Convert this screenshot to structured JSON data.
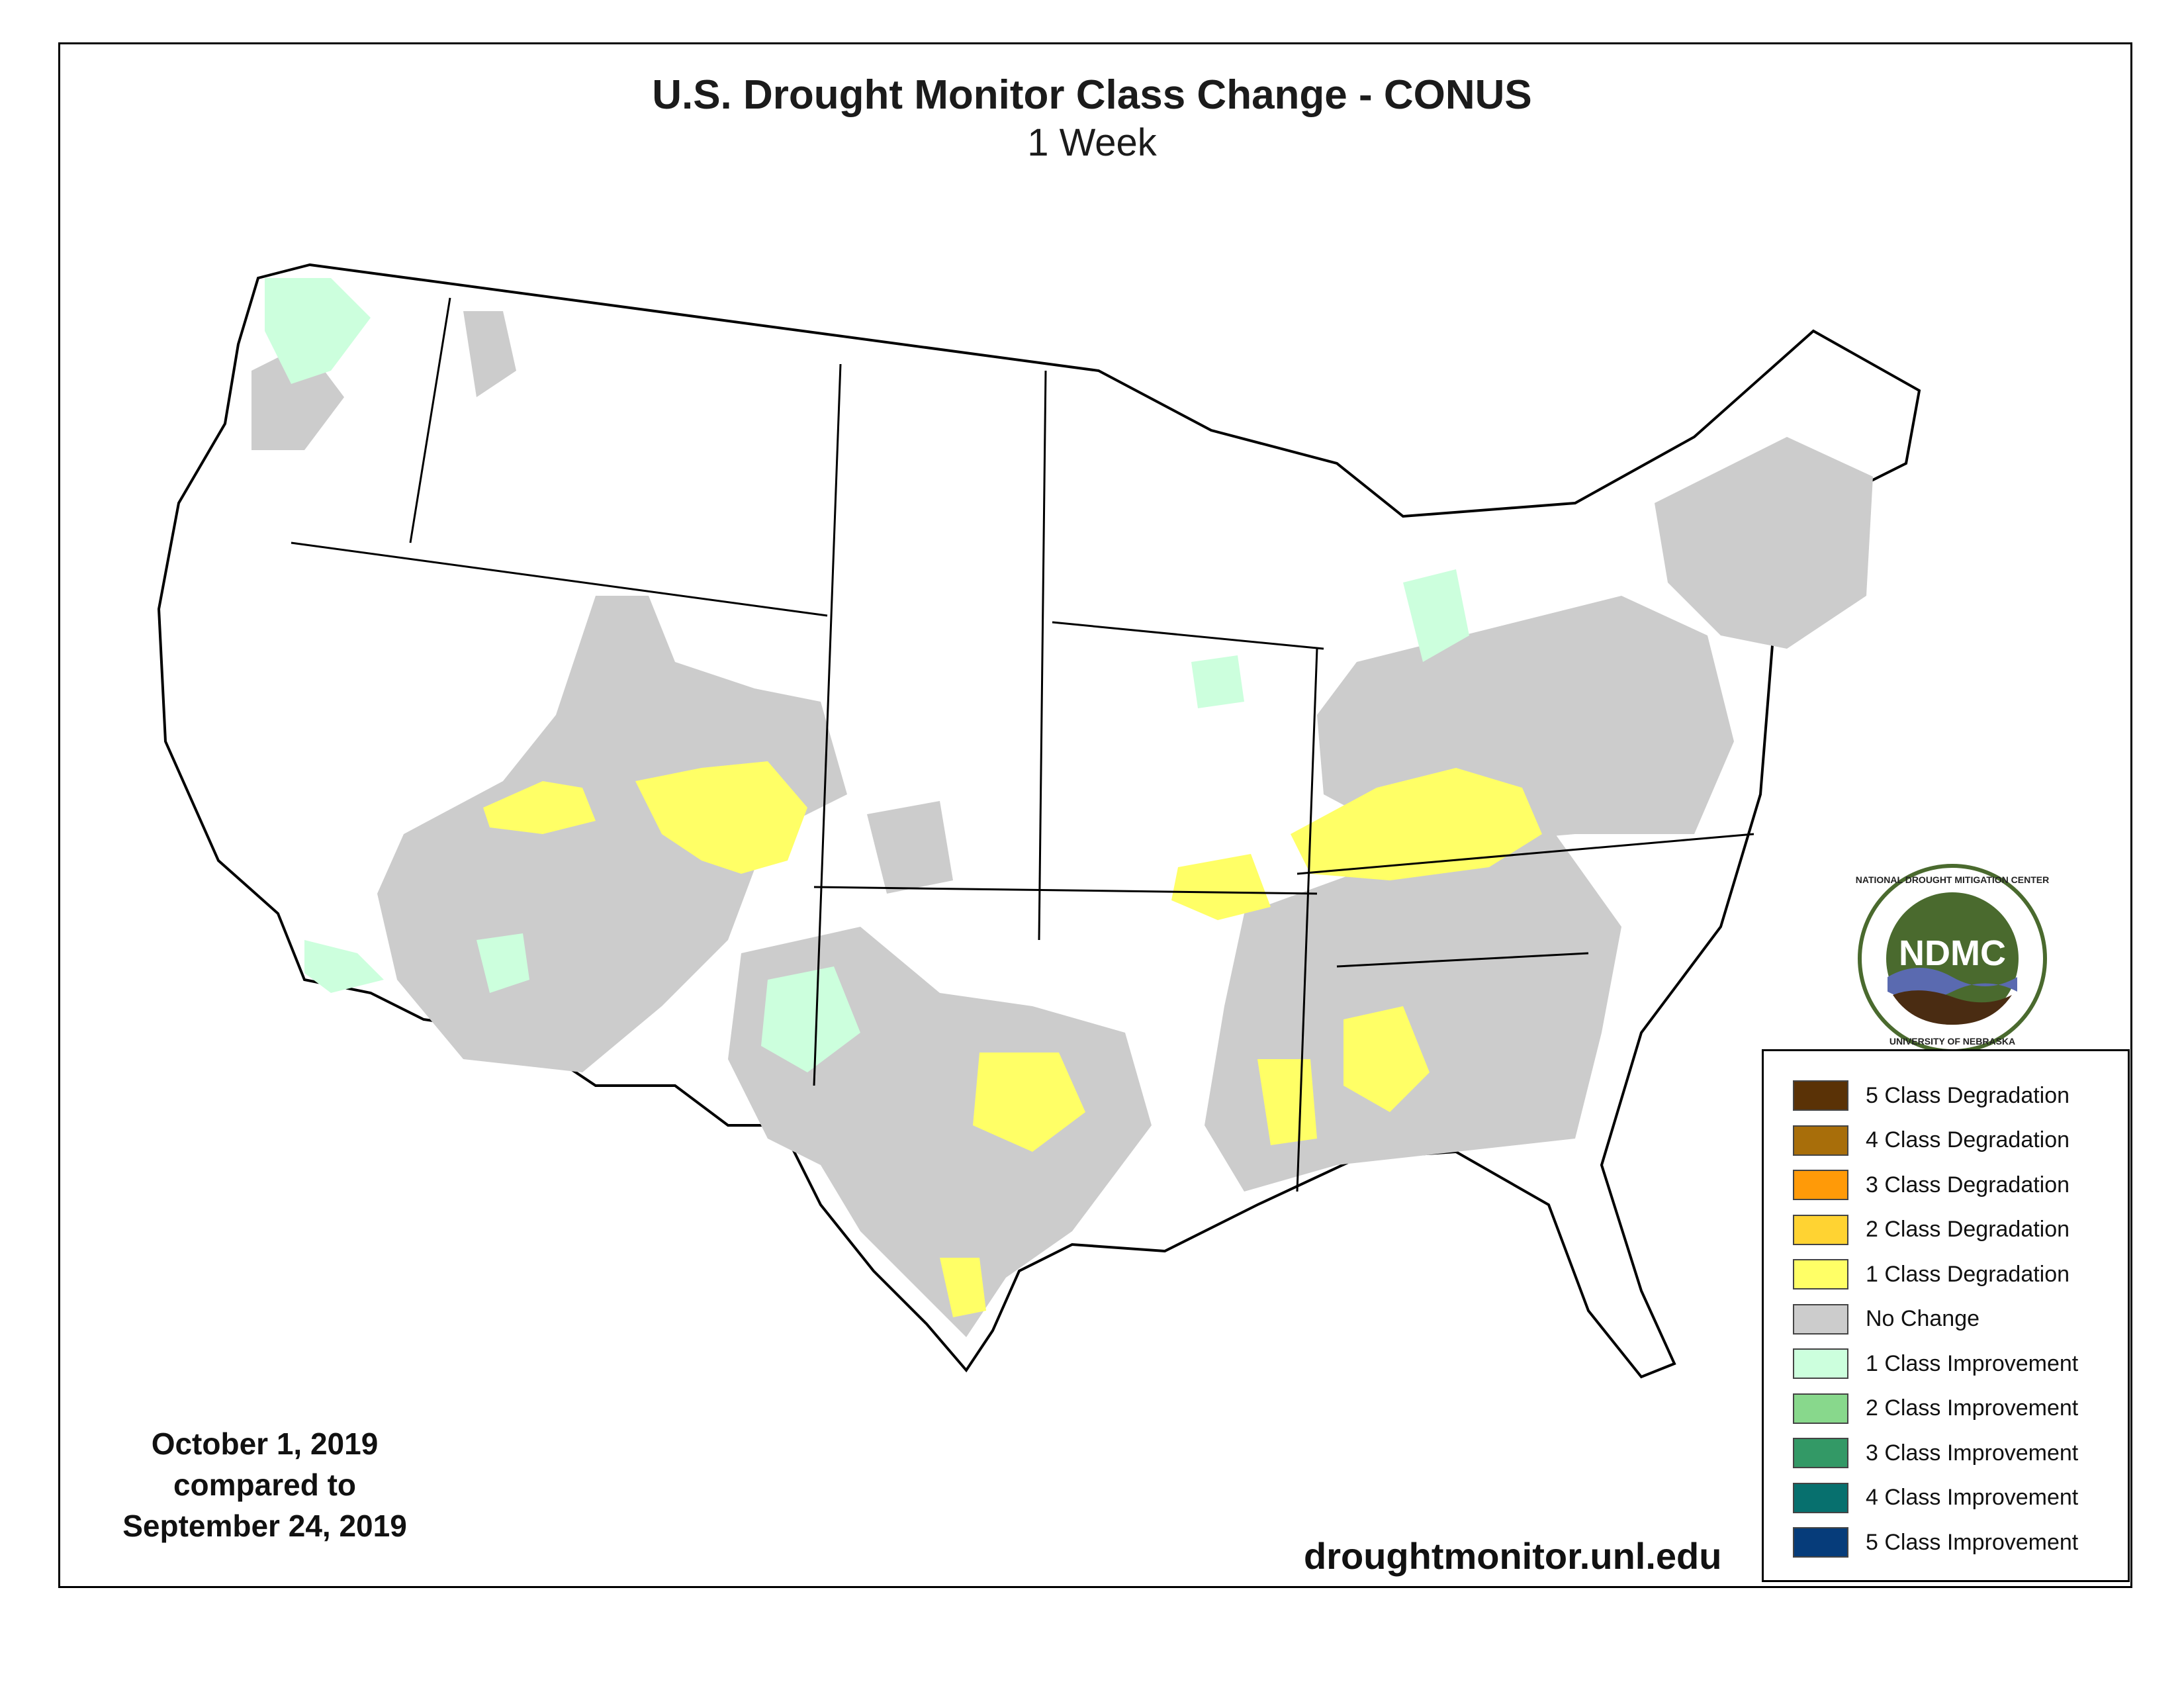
{
  "title": "U.S. Drought Monitor Class Change - CONUS",
  "subtitle": "1 Week",
  "date_block": {
    "line1": "October 1, 2019",
    "line2": "compared to",
    "line3": "September 24, 2019"
  },
  "website": "droughtmonitor.unl.edu",
  "logo": {
    "text": "NDMC",
    "ring_top": "NATIONAL DROUGHT MITIGATION CENTER",
    "ring_bottom": "UNIVERSITY OF NEBRASKA",
    "colors": {
      "disc": "#4a6a2e",
      "water": "#5a6ab0",
      "soil": "#4a2c12"
    }
  },
  "legend": [
    {
      "label": "5 Class Degradation",
      "color": "#5a3206"
    },
    {
      "label": "4 Class Degradation",
      "color": "#a86e0a"
    },
    {
      "label": "3 Class Degradation",
      "color": "#ff9a08"
    },
    {
      "label": "2 Class Degradation",
      "color": "#ffd332"
    },
    {
      "label": "1 Class Degradation",
      "color": "#ffff66"
    },
    {
      "label": "No Change",
      "color": "#cccccc"
    },
    {
      "label": "1 Class Improvement",
      "color": "#ccffdd"
    },
    {
      "label": "2 Class Improvement",
      "color": "#88d88c"
    },
    {
      "label": "3 Class Improvement",
      "color": "#339966"
    },
    {
      "label": "4 Class Improvement",
      "color": "#07706e"
    },
    {
      "label": "5 Class Improvement",
      "color": "#063c7a"
    }
  ]
}
